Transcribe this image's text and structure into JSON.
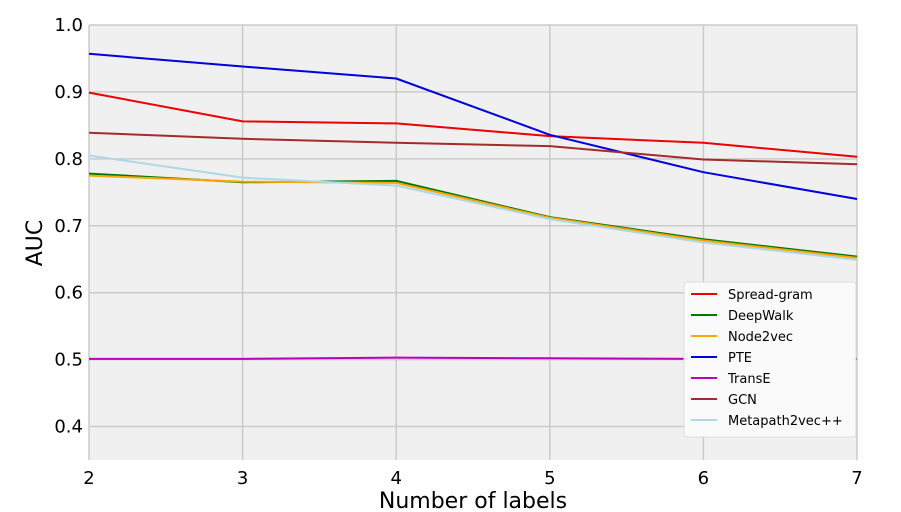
{
  "chart_data": {
    "type": "line",
    "title": "",
    "xlabel": "Number of labels",
    "ylabel": "AUC",
    "x": [
      2,
      3,
      4,
      5,
      6,
      7
    ],
    "xlim": [
      2,
      7
    ],
    "ylim": [
      0.35,
      1.0
    ],
    "xticks": [
      2,
      3,
      4,
      5,
      6,
      7
    ],
    "yticks": [
      0.4,
      0.5,
      0.6,
      0.7,
      0.8,
      0.9,
      1.0
    ],
    "grid": true,
    "legend_position": "lower-right",
    "background": "#f0f0f0",
    "series": [
      {
        "name": "Spread-gram",
        "color": "#ee0000",
        "values": [
          0.899,
          0.856,
          0.853,
          0.834,
          0.824,
          0.803
        ]
      },
      {
        "name": "DeepWalk",
        "color": "#007700",
        "values": [
          0.778,
          0.765,
          0.767,
          0.713,
          0.68,
          0.654
        ]
      },
      {
        "name": "Node2vec",
        "color": "#ffa500",
        "values": [
          0.775,
          0.766,
          0.764,
          0.712,
          0.678,
          0.652
        ]
      },
      {
        "name": "PTE",
        "color": "#0000dd",
        "values": [
          0.957,
          0.938,
          0.92,
          0.836,
          0.78,
          0.74
        ]
      },
      {
        "name": "TransE",
        "color": "#bb00bb",
        "values": [
          0.501,
          0.501,
          0.503,
          0.502,
          0.501,
          0.501
        ]
      },
      {
        "name": "GCN",
        "color": "#a52a2a",
        "values": [
          0.839,
          0.83,
          0.824,
          0.819,
          0.799,
          0.792
        ]
      },
      {
        "name": "Metapath2vec++",
        "color": "#add8e6",
        "values": [
          0.805,
          0.772,
          0.76,
          0.71,
          0.675,
          0.649
        ]
      }
    ]
  }
}
